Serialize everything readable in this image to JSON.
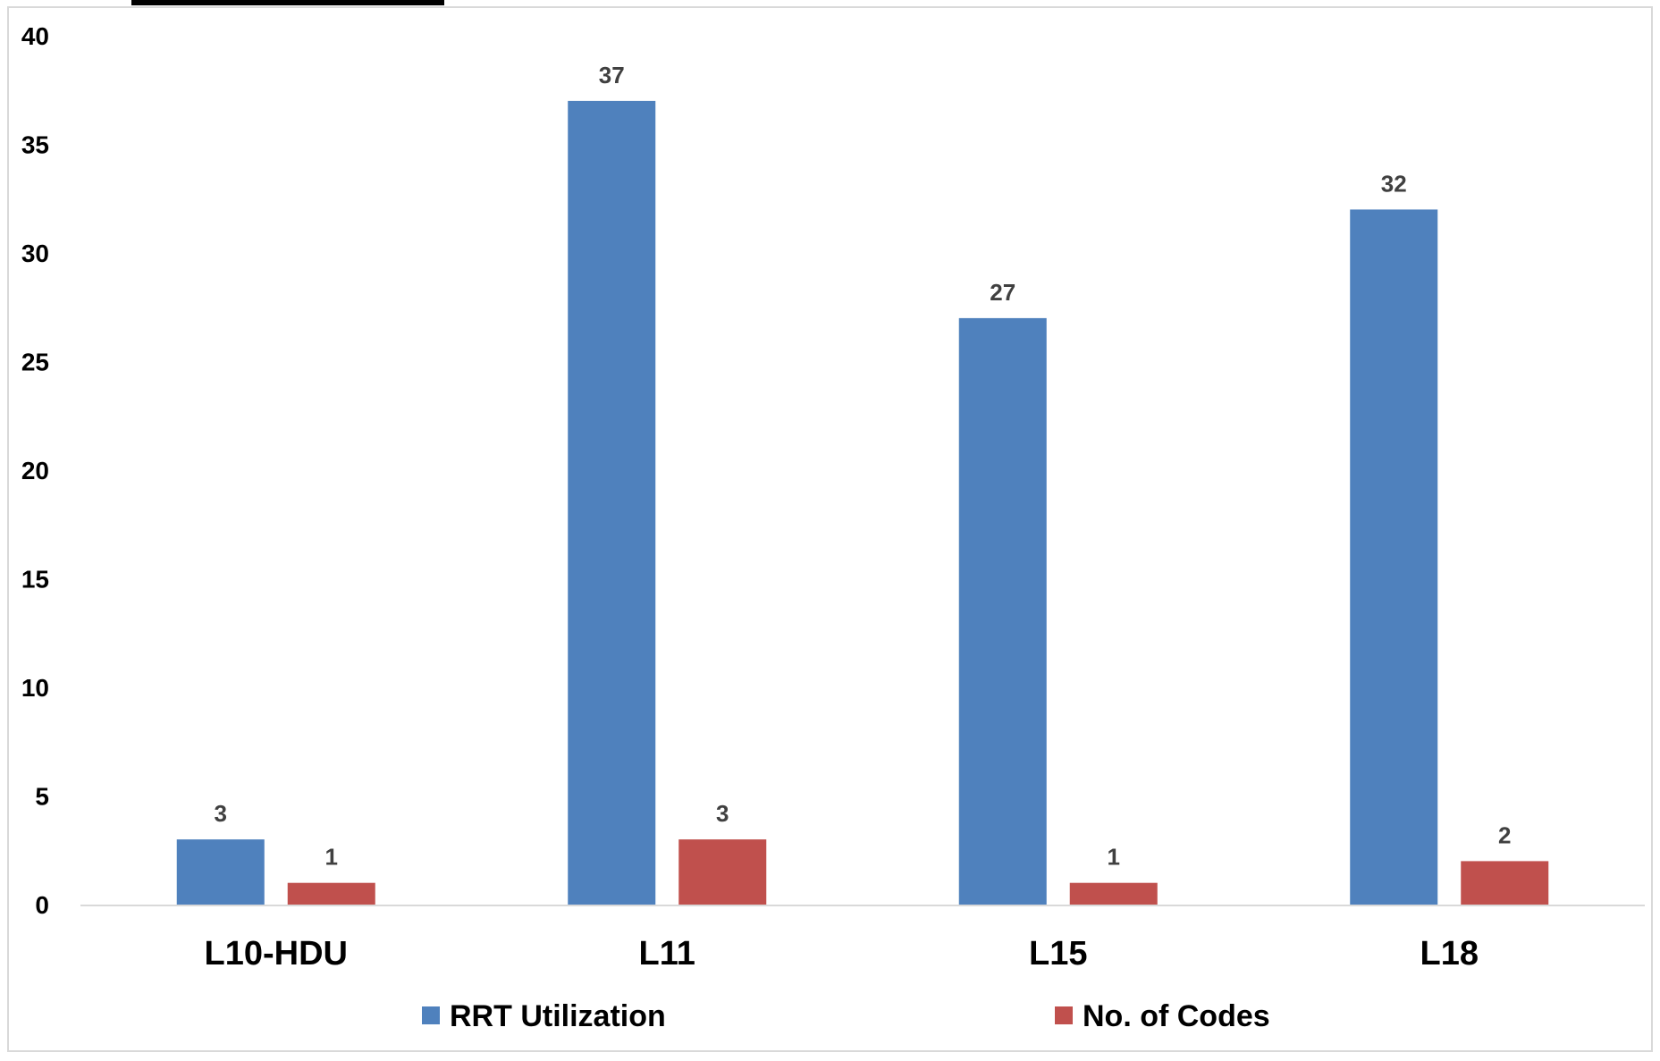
{
  "chart_data": {
    "type": "bar",
    "title": "",
    "xlabel": "",
    "ylabel": "",
    "categories": [
      "L10-HDU",
      "L11",
      "L15",
      "L18"
    ],
    "series": [
      {
        "name": "RRT Utilization",
        "values": [
          3,
          37,
          27,
          32
        ],
        "color": "#4F81BD"
      },
      {
        "name": "No. of Codes",
        "values": [
          1,
          3,
          1,
          2
        ],
        "color": "#C0504D"
      }
    ],
    "ylim": [
      0,
      40
    ],
    "yticks": [
      0,
      5,
      10,
      15,
      20,
      25,
      30,
      35,
      40
    ],
    "grid": false,
    "data_labels": true,
    "legend_position": "bottom"
  }
}
